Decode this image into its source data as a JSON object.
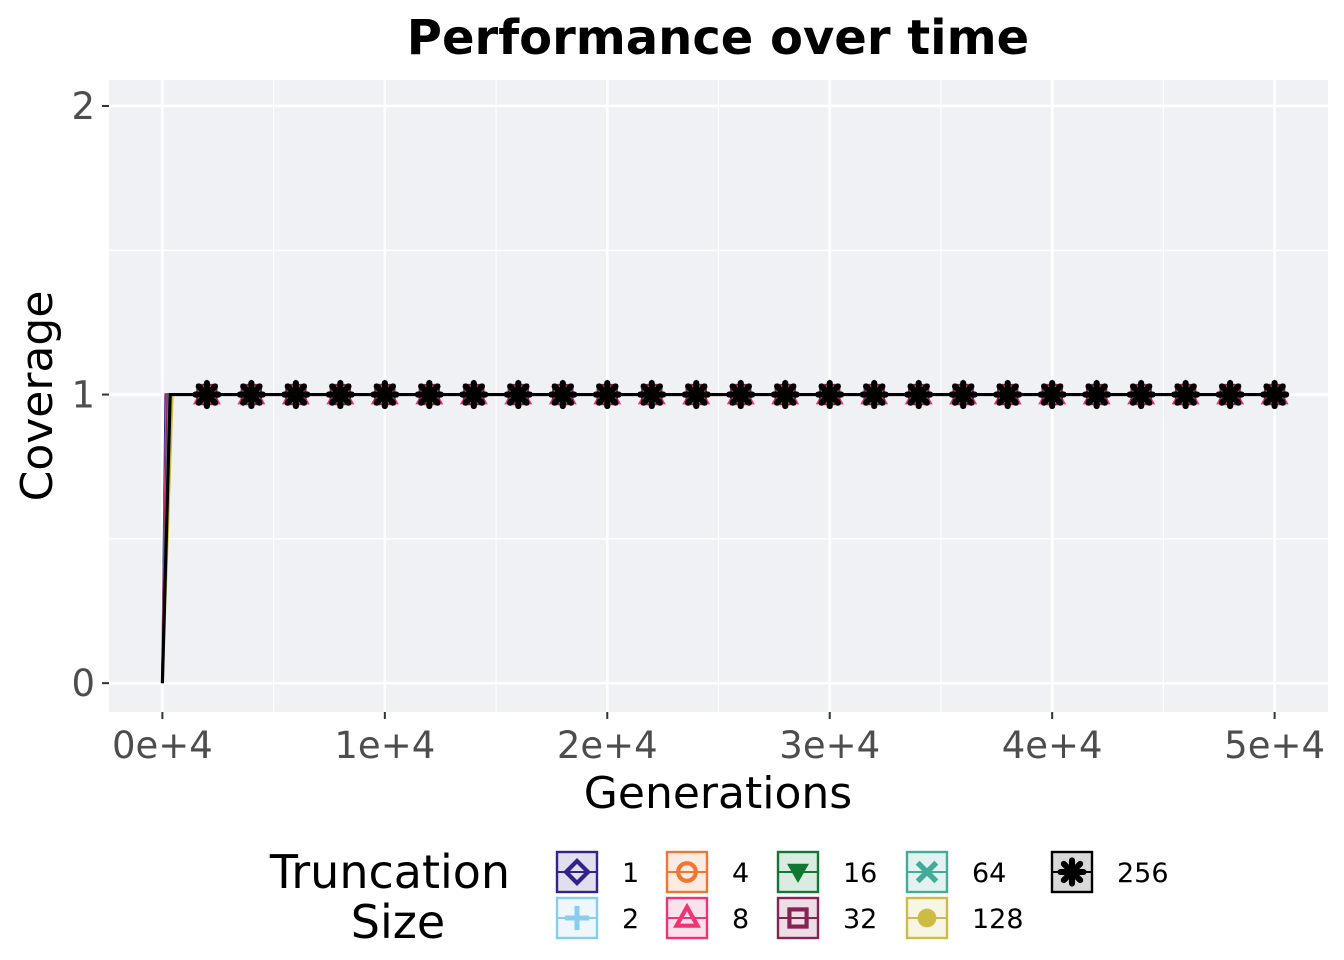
{
  "chart_data": {
    "type": "line",
    "title": "Performance over time",
    "xlabel": "Generations",
    "ylabel": "Coverage",
    "xlim": [
      -2400,
      52400
    ],
    "ylim": [
      -0.1,
      2.09
    ],
    "x_ticks": [
      0,
      10000,
      20000,
      30000,
      40000,
      50000
    ],
    "x_tick_labels": [
      "0e+4",
      "1e+4",
      "2e+4",
      "3e+4",
      "4e+4",
      "5e+4"
    ],
    "y_ticks": [
      0,
      1,
      2
    ],
    "y_tick_labels": [
      "0",
      "1",
      "2"
    ],
    "grid": true,
    "legend_position": "bottom",
    "legend_title": "Truncation\nSize",
    "marker_x": [
      2000,
      4000,
      6000,
      8000,
      10000,
      12000,
      14000,
      16000,
      18000,
      20000,
      22000,
      24000,
      26000,
      28000,
      30000,
      32000,
      34000,
      36000,
      38000,
      40000,
      42000,
      44000,
      46000,
      48000,
      50000
    ],
    "series": [
      {
        "name": "1",
        "color": "#332288",
        "marker": "diamond-open",
        "x": [
          0,
          150,
          50000
        ],
        "y": [
          0,
          1,
          1
        ]
      },
      {
        "name": "2",
        "color": "#88ccee",
        "marker": "plus",
        "x": [
          0,
          200,
          50000
        ],
        "y": [
          0,
          1,
          1
        ]
      },
      {
        "name": "4",
        "color": "#ee7733",
        "marker": "circle-open",
        "x": [
          0,
          250,
          50000
        ],
        "y": [
          0,
          1,
          1
        ]
      },
      {
        "name": "8",
        "color": "#ee3377",
        "marker": "triangle-open",
        "x": [
          0,
          200,
          50000
        ],
        "y": [
          0,
          1,
          1
        ]
      },
      {
        "name": "16",
        "color": "#117733",
        "marker": "triangle-down",
        "x": [
          0,
          300,
          50000
        ],
        "y": [
          0,
          1,
          1
        ]
      },
      {
        "name": "32",
        "color": "#882255",
        "marker": "square-open",
        "x": [
          0,
          250,
          50000
        ],
        "y": [
          0,
          1,
          1
        ]
      },
      {
        "name": "64",
        "color": "#44aa99",
        "marker": "cross",
        "x": [
          0,
          300,
          50000
        ],
        "y": [
          0,
          1,
          1
        ]
      },
      {
        "name": "128",
        "color": "#ccbb44",
        "marker": "circle",
        "x": [
          0,
          450,
          50000
        ],
        "y": [
          0,
          1,
          1
        ]
      },
      {
        "name": "256",
        "color": "#000000",
        "marker": "asterisk",
        "x": [
          0,
          350,
          50000
        ],
        "y": [
          0,
          1,
          1
        ]
      }
    ]
  }
}
